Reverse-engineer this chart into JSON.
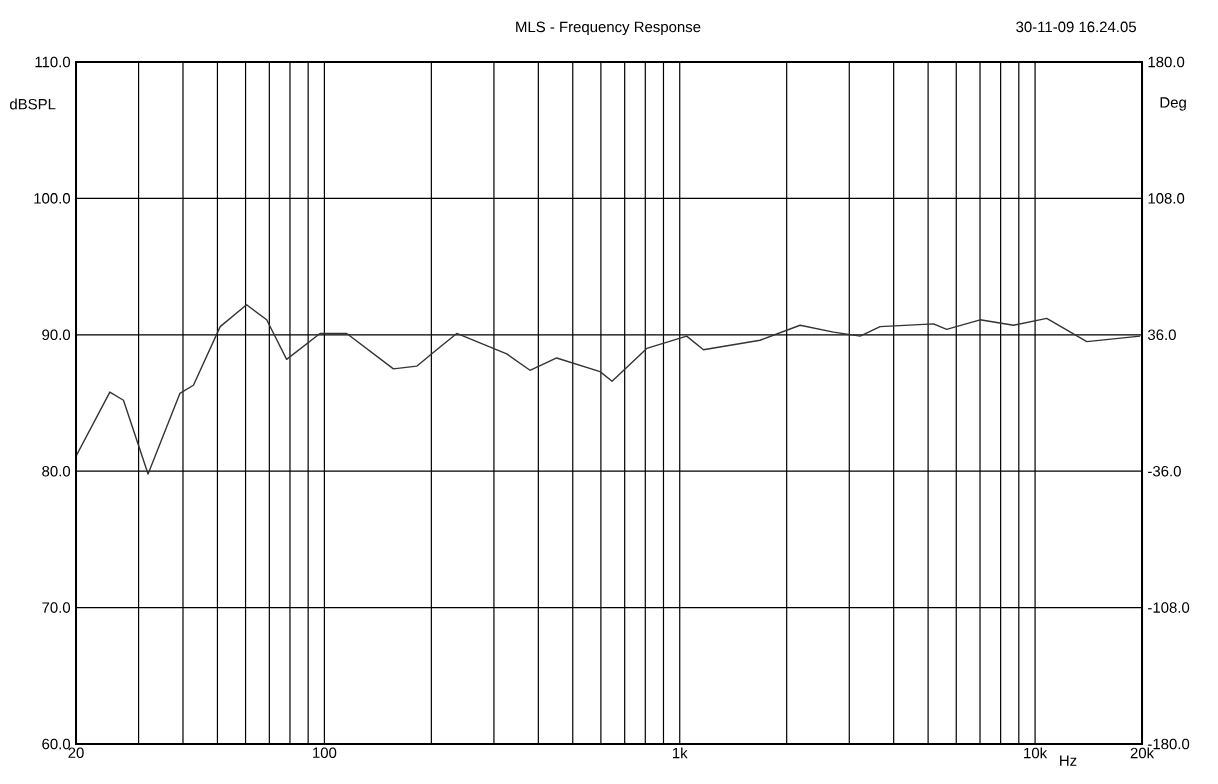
{
  "chart_data": {
    "type": "line",
    "title": "MLS - Frequency Response",
    "annotations": [
      "30-11-09 16.24.05"
    ],
    "xlabel": "Hz",
    "ylabel": "dBSPL",
    "y2label": "Deg",
    "log": "x",
    "grid": true,
    "color": "#333333",
    "x": [
      20,
      24.9,
      27.2,
      31.9,
      39.2,
      42.8,
      50.9,
      60.4,
      68.8,
      78.3,
      97.2,
      115.6,
      156.4,
      181.9,
      207,
      235.8,
      325.9,
      379,
      450.5,
      596.8,
      645,
      807.6,
      1046,
      1166,
      1683,
      2181,
      2709,
      3219,
      3664,
      5178,
      5640,
      7003,
      8696,
      10786,
      13983,
      19760
    ],
    "values": [
      81.1,
      85.8,
      85.2,
      79.8,
      85.7,
      86.3,
      90.6,
      92.2,
      91.1,
      88.2,
      90.1,
      90.1,
      87.5,
      87.7,
      88.9,
      90.1,
      88.6,
      87.4,
      88.3,
      87.3,
      86.6,
      89.0,
      89.9,
      88.9,
      89.6,
      90.7,
      90.2,
      89.9,
      90.6,
      90.8,
      90.4,
      91.1,
      90.7,
      91.2,
      89.5,
      89.9
    ],
    "xlim": [
      20,
      20000
    ],
    "xticks": [
      20,
      {
        "value": 30,
        "label": null
      },
      {
        "value": 40,
        "label": null
      },
      {
        "value": 50,
        "label": null
      },
      {
        "value": 60,
        "label": null
      },
      {
        "value": 70,
        "label": null
      },
      {
        "value": 80,
        "label": null
      },
      {
        "value": 90,
        "label": null
      },
      100,
      {
        "value": 200,
        "label": null
      },
      {
        "value": 300,
        "label": null
      },
      {
        "value": 400,
        "label": null
      },
      {
        "value": 500,
        "label": null
      },
      {
        "value": 600,
        "label": null
      },
      {
        "value": 700,
        "label": null
      },
      {
        "value": 800,
        "label": null
      },
      {
        "value": 900,
        "label": null
      },
      {
        "value": 1000,
        "label": "1k"
      },
      {
        "value": 2000,
        "label": null
      },
      {
        "value": 3000,
        "label": null
      },
      {
        "value": 4000,
        "label": null
      },
      {
        "value": 5000,
        "label": null
      },
      {
        "value": 6000,
        "label": null
      },
      {
        "value": 7000,
        "label": null
      },
      {
        "value": 8000,
        "label": null
      },
      {
        "value": 9000,
        "label": null
      },
      {
        "value": 10000,
        "label": "10k"
      },
      {
        "value": 20000,
        "label": "20k"
      }
    ],
    "ylim": [
      60,
      110
    ],
    "yticks": [
      {
        "value": 60,
        "label": "60.0"
      },
      {
        "value": 70,
        "label": "70.0"
      },
      {
        "value": 80,
        "label": "80.0"
      },
      {
        "value": 90,
        "label": "90.0"
      },
      {
        "value": 100,
        "label": "100.0"
      },
      {
        "value": 110,
        "label": "110.0"
      }
    ],
    "y2lim": [
      -180,
      180
    ],
    "y2ticks": [
      {
        "value": -180,
        "label": "-180.0"
      },
      {
        "value": -108,
        "label": "-108.0"
      },
      {
        "value": -36,
        "label": "-36.0"
      },
      {
        "value": 36,
        "label": "36.0"
      },
      {
        "value": 108,
        "label": "108.0"
      },
      {
        "value": 180,
        "label": "180.0"
      }
    ]
  }
}
